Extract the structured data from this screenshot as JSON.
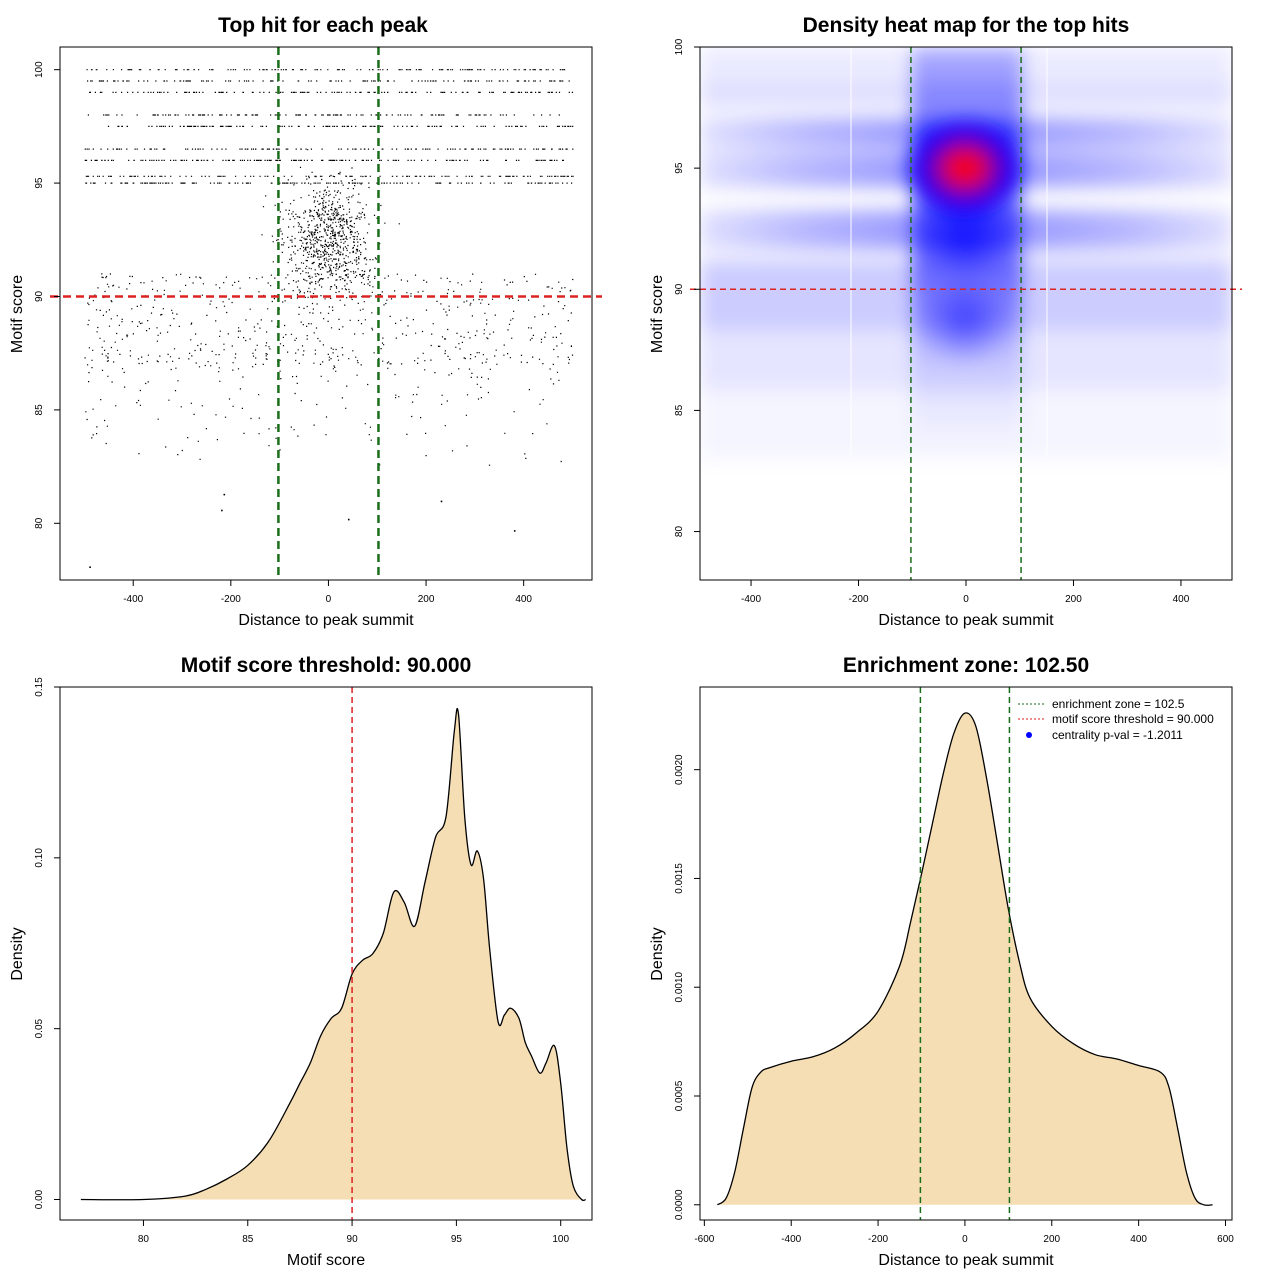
{
  "chart_data": [
    {
      "type": "scatter",
      "title": "Top hit for each peak",
      "xlabel": "Distance to peak summit",
      "ylabel": "Motif score",
      "xlim": [
        -550,
        540
      ],
      "ylim": [
        77.5,
        101
      ],
      "x_ticks": [
        "-400",
        "-200",
        "0",
        "200",
        "400"
      ],
      "y_ticks": [
        "80",
        "85",
        "90",
        "95",
        "100"
      ],
      "hlines": [
        {
          "y": 90,
          "color": "#dd2222",
          "style": "dashed"
        }
      ],
      "vlines": [
        {
          "x": -102.5,
          "color": "#1a6e1a",
          "style": "dashed"
        },
        {
          "x": 102.5,
          "color": "#1a6e1a",
          "style": "dashed"
        }
      ],
      "point_distribution": {
        "x_range": [
          -500,
          500
        ],
        "point_count_approx": 12000,
        "densest_score_band": [
          89,
          96
        ],
        "dominant_score_levels": [
          100,
          99.5,
          99,
          98,
          97.5,
          96.5,
          96,
          95.3,
          95
        ],
        "isolated_points": [
          {
            "x": -490,
            "y": 78.1
          },
          {
            "x": -220,
            "y": 80.6
          },
          {
            "x": 380,
            "y": 79.7
          },
          {
            "x": 40,
            "y": 80.2
          },
          {
            "x": 230,
            "y": 81.0
          },
          {
            "x": -215,
            "y": 81.3
          }
        ]
      }
    },
    {
      "type": "heatmap",
      "title": "Density heat map for the top hits",
      "xlabel": "Distance to peak summit",
      "ylabel": "Motif score",
      "xlim": [
        -495,
        495
      ],
      "ylim": [
        78,
        100
      ],
      "x_ticks": [
        "-400",
        "-200",
        "0",
        "200",
        "400"
      ],
      "y_ticks": [
        "80",
        "85",
        "90",
        "95",
        "100"
      ],
      "hlines": [
        {
          "y": 90,
          "color": "#dd2222",
          "style": "dashed"
        }
      ],
      "vlines": [
        {
          "x": -102.5,
          "color": "#1a6e1a",
          "style": "dashed"
        },
        {
          "x": 102.5,
          "color": "#1a6e1a",
          "style": "dashed"
        }
      ],
      "colormap": [
        "#ffffff",
        "#0000ff",
        "#ff0000"
      ],
      "density_peak": {
        "x": 0,
        "y": 95
      }
    },
    {
      "type": "area",
      "title": "Motif score threshold: 90.000",
      "xlabel": "Motif score",
      "ylabel": "Density",
      "xlim": [
        76,
        101.5
      ],
      "ylim": [
        -0.006,
        0.15
      ],
      "x_ticks": [
        "80",
        "85",
        "90",
        "95",
        "100"
      ],
      "y_ticks": [
        "0.00",
        "0.05",
        "0.10",
        "0.15"
      ],
      "fill": "#f5deb3",
      "vlines": [
        {
          "x": 90,
          "color": "#dd2222",
          "style": "dashed"
        }
      ],
      "x": [
        77,
        80,
        82,
        83,
        84,
        85,
        86,
        87,
        87.5,
        88,
        88.5,
        89,
        89.5,
        90,
        90.5,
        91,
        91.5,
        92,
        92.5,
        93,
        93.5,
        94,
        94.5,
        94.9,
        95.1,
        95.4,
        95.7,
        96,
        96.3,
        96.6,
        97,
        97.3,
        97.6,
        98,
        98.3,
        98.6,
        99,
        99.3,
        99.7,
        100,
        100.3,
        100.6,
        101,
        101.2
      ],
      "values": [
        0,
        0,
        0.001,
        0.003,
        0.006,
        0.01,
        0.017,
        0.028,
        0.034,
        0.04,
        0.048,
        0.053,
        0.056,
        0.066,
        0.07,
        0.072,
        0.078,
        0.09,
        0.087,
        0.08,
        0.093,
        0.106,
        0.112,
        0.137,
        0.142,
        0.112,
        0.098,
        0.102,
        0.094,
        0.073,
        0.052,
        0.054,
        0.056,
        0.053,
        0.046,
        0.042,
        0.037,
        0.04,
        0.045,
        0.034,
        0.015,
        0.004,
        0,
        0
      ]
    },
    {
      "type": "area",
      "title": "Enrichment zone: 102.50",
      "xlabel": "Distance to peak summit",
      "ylabel": "Density",
      "xlim": [
        -610,
        615
      ],
      "ylim": [
        -7e-05,
        0.00238
      ],
      "x_ticks": [
        "-600",
        "-400",
        "-200",
        "0",
        "200",
        "400",
        "600"
      ],
      "y_ticks": [
        "0.0000",
        "0.0005",
        "0.0010",
        "0.0015",
        "0.0020"
      ],
      "fill": "#f5deb3",
      "vlines": [
        {
          "x": -102.5,
          "color": "#1a6e1a",
          "style": "dashed"
        },
        {
          "x": 102.5,
          "color": "#1a6e1a",
          "style": "dashed"
        }
      ],
      "x": [
        -570,
        -550,
        -530,
        -510,
        -490,
        -470,
        -450,
        -400,
        -350,
        -300,
        -250,
        -200,
        -150,
        -125,
        -100,
        -75,
        -50,
        -25,
        0,
        25,
        50,
        75,
        100,
        125,
        150,
        200,
        250,
        300,
        350,
        400,
        450,
        470,
        490,
        510,
        530,
        550,
        570
      ],
      "values": [
        0,
        3e-05,
        0.00015,
        0.00035,
        0.00054,
        0.00061,
        0.00063,
        0.00066,
        0.00068,
        0.00072,
        0.00079,
        0.00089,
        0.0011,
        0.0013,
        0.00152,
        0.00175,
        0.00198,
        0.00217,
        0.00226,
        0.0022,
        0.00196,
        0.00166,
        0.00136,
        0.00112,
        0.00095,
        0.00082,
        0.00074,
        0.00069,
        0.00067,
        0.00064,
        0.00061,
        0.00054,
        0.00035,
        0.00015,
        3e-05,
        0,
        0
      ],
      "legend": {
        "placement": "top-right",
        "entries": [
          {
            "label": "enrichment zone = 102.5",
            "color": "#1a6e1a",
            "kind": "dotted-line"
          },
          {
            "label": "motif score threshold = 90.000",
            "color": "#dd2222",
            "kind": "dotted-line"
          },
          {
            "label": "centrality p-val = -1.2011",
            "color": "#0000ff",
            "kind": "point"
          }
        ]
      }
    }
  ]
}
